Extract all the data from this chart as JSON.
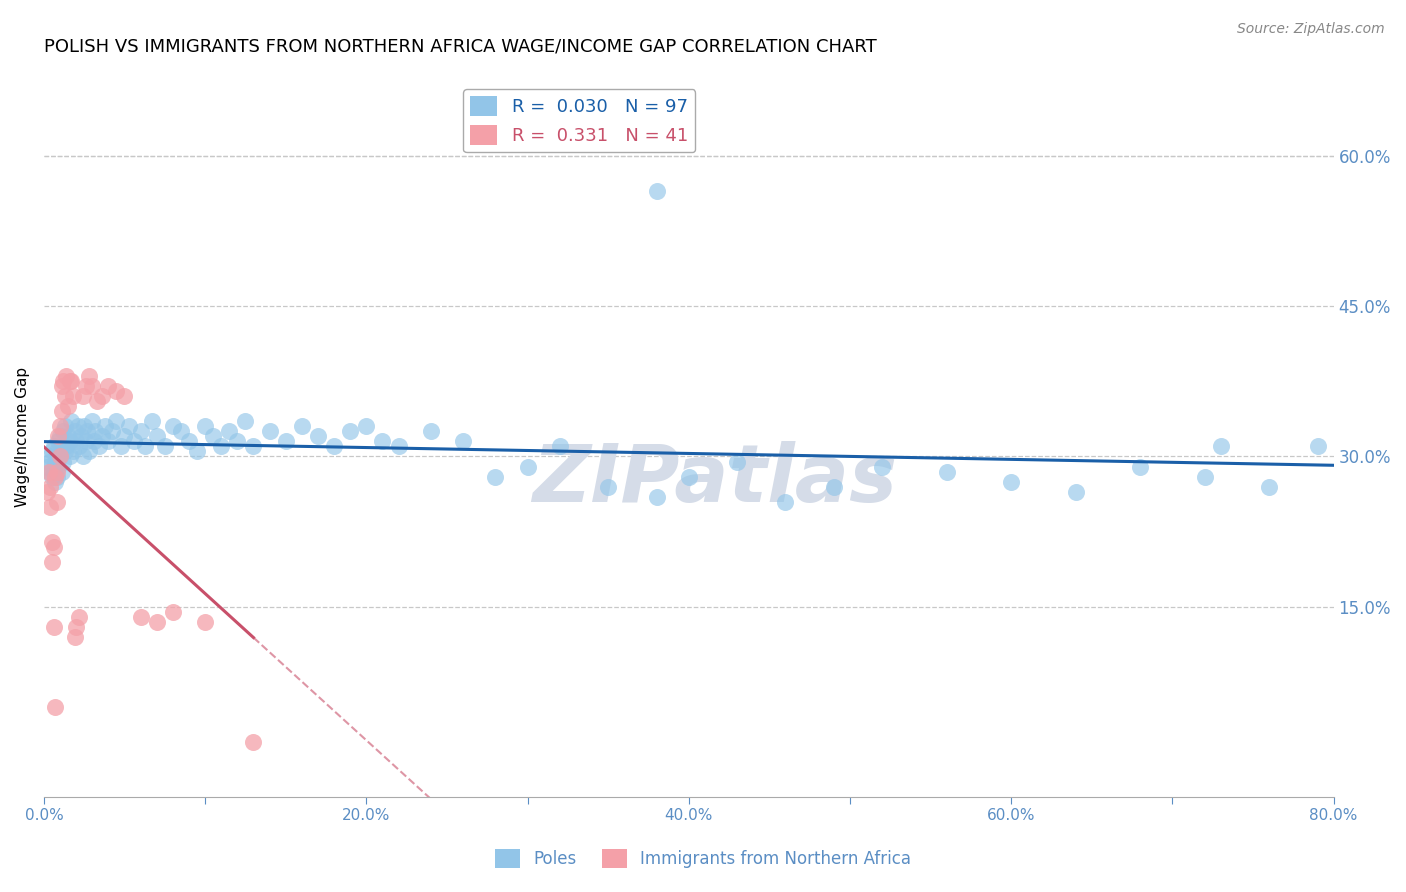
{
  "title": "POLISH VS IMMIGRANTS FROM NORTHERN AFRICA WAGE/INCOME GAP CORRELATION CHART",
  "source": "Source: ZipAtlas.com",
  "ylabel": "Wage/Income Gap",
  "xlabel": "",
  "xlim": [
    0.0,
    0.8
  ],
  "ylim": [
    -0.04,
    0.68
  ],
  "yticks_right": [
    0.15,
    0.3,
    0.45,
    0.6
  ],
  "ytick_labels_right": [
    "15.0%",
    "30.0%",
    "45.0%",
    "60.0%"
  ],
  "xtick_positions": [
    0.0,
    0.1,
    0.2,
    0.3,
    0.4,
    0.5,
    0.6,
    0.7,
    0.8
  ],
  "xtick_labels": [
    "0.0%",
    "",
    "20.0%",
    "",
    "40.0%",
    "",
    "60.0%",
    "",
    "80.0%"
  ],
  "grid_color": "#c8c8c8",
  "background_color": "#ffffff",
  "poles_color": "#92C5E8",
  "poles_trend_color": "#1a5fa8",
  "immigrants_color": "#F4A0A8",
  "immigrants_trend_color": "#c8506a",
  "poles_R": 0.03,
  "poles_N": 97,
  "immigrants_R": 0.331,
  "immigrants_N": 41,
  "watermark": "ZIPatlas",
  "watermark_color": "#d5dce8",
  "title_fontsize": 13,
  "axis_label_fontsize": 11,
  "tick_fontsize": 11,
  "legend_fontsize": 13,
  "source_fontsize": 10,
  "poles_x": [
    0.002,
    0.003,
    0.004,
    0.004,
    0.005,
    0.005,
    0.006,
    0.006,
    0.007,
    0.007,
    0.008,
    0.008,
    0.009,
    0.009,
    0.01,
    0.01,
    0.011,
    0.011,
    0.012,
    0.012,
    0.013,
    0.013,
    0.014,
    0.015,
    0.016,
    0.016,
    0.017,
    0.018,
    0.019,
    0.02,
    0.021,
    0.022,
    0.023,
    0.024,
    0.025,
    0.026,
    0.027,
    0.028,
    0.03,
    0.031,
    0.032,
    0.034,
    0.036,
    0.038,
    0.04,
    0.042,
    0.045,
    0.048,
    0.05,
    0.053,
    0.056,
    0.06,
    0.063,
    0.067,
    0.07,
    0.075,
    0.08,
    0.085,
    0.09,
    0.095,
    0.1,
    0.105,
    0.11,
    0.115,
    0.12,
    0.125,
    0.13,
    0.14,
    0.15,
    0.16,
    0.17,
    0.18,
    0.19,
    0.2,
    0.21,
    0.22,
    0.24,
    0.26,
    0.28,
    0.3,
    0.32,
    0.35,
    0.38,
    0.4,
    0.43,
    0.46,
    0.49,
    0.52,
    0.56,
    0.6,
    0.64,
    0.68,
    0.72,
    0.76,
    0.79,
    0.73,
    0.38
  ],
  "poles_y": [
    0.29,
    0.295,
    0.3,
    0.285,
    0.305,
    0.28,
    0.31,
    0.285,
    0.295,
    0.275,
    0.305,
    0.28,
    0.315,
    0.29,
    0.3,
    0.32,
    0.31,
    0.285,
    0.325,
    0.295,
    0.305,
    0.33,
    0.31,
    0.32,
    0.3,
    0.315,
    0.335,
    0.305,
    0.325,
    0.315,
    0.33,
    0.31,
    0.32,
    0.3,
    0.33,
    0.315,
    0.325,
    0.305,
    0.335,
    0.315,
    0.325,
    0.31,
    0.32,
    0.33,
    0.315,
    0.325,
    0.335,
    0.31,
    0.32,
    0.33,
    0.315,
    0.325,
    0.31,
    0.335,
    0.32,
    0.31,
    0.33,
    0.325,
    0.315,
    0.305,
    0.33,
    0.32,
    0.31,
    0.325,
    0.315,
    0.335,
    0.31,
    0.325,
    0.315,
    0.33,
    0.32,
    0.31,
    0.325,
    0.33,
    0.315,
    0.31,
    0.325,
    0.315,
    0.28,
    0.29,
    0.31,
    0.27,
    0.26,
    0.28,
    0.295,
    0.255,
    0.27,
    0.29,
    0.285,
    0.275,
    0.265,
    0.29,
    0.28,
    0.27,
    0.31,
    0.31,
    0.565
  ],
  "immigrants_x": [
    0.002,
    0.003,
    0.004,
    0.004,
    0.005,
    0.005,
    0.006,
    0.006,
    0.007,
    0.007,
    0.008,
    0.008,
    0.009,
    0.01,
    0.01,
    0.011,
    0.011,
    0.012,
    0.013,
    0.014,
    0.015,
    0.016,
    0.017,
    0.018,
    0.019,
    0.02,
    0.022,
    0.024,
    0.026,
    0.028,
    0.03,
    0.033,
    0.036,
    0.04,
    0.045,
    0.05,
    0.06,
    0.07,
    0.08,
    0.1,
    0.13
  ],
  "immigrants_y": [
    0.265,
    0.285,
    0.27,
    0.25,
    0.215,
    0.195,
    0.21,
    0.13,
    0.05,
    0.28,
    0.285,
    0.255,
    0.32,
    0.3,
    0.33,
    0.345,
    0.37,
    0.375,
    0.36,
    0.38,
    0.35,
    0.375,
    0.375,
    0.36,
    0.12,
    0.13,
    0.14,
    0.36,
    0.37,
    0.38,
    0.37,
    0.355,
    0.36,
    0.37,
    0.365,
    0.36,
    0.14,
    0.135,
    0.145,
    0.135,
    0.015
  ]
}
